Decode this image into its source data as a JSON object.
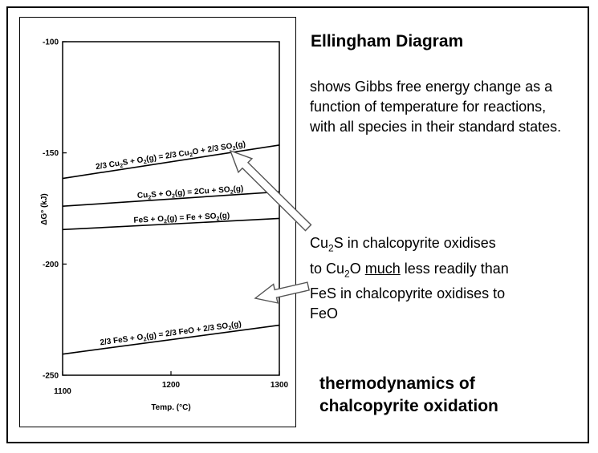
{
  "slide": {
    "title": "Ellingham Diagram",
    "description": "shows Gibbs free energy change as a function of temperature for reactions, with all species in their standard states.",
    "note": {
      "l1_a": "Cu",
      "l1_sub": "2",
      "l1_b": "S in chalcopyrite oxidises",
      "l2_a": "to Cu",
      "l2_sub": "2",
      "l2_b": "O ",
      "l2_u": "much",
      "l2_c": " less readily than",
      "l3": "FeS in chalcopyrite oxidises to",
      "l4": "FeO"
    },
    "footer_line1": "thermodynamics of",
    "footer_line2": "chalcopyrite oxidation"
  },
  "chart_data": {
    "type": "line",
    "xlabel": "Temp. (°C)",
    "ylabel": "ΔG° (kJ)",
    "xlim": [
      1100,
      1300
    ],
    "ylim": [
      -250,
      -100
    ],
    "x_ticks": [
      "1100",
      "1200",
      "1300"
    ],
    "y_ticks": [
      "-100",
      "-150",
      "-200",
      "-250"
    ],
    "grid": false,
    "series": [
      {
        "x": [
          1100,
          1300
        ],
        "y": [
          -161.5,
          -146.5
        ],
        "label_parts": [
          "2/3 Cu",
          "2",
          "S + O",
          "2",
          "(g) = 2/3 Cu",
          "2",
          "O + 2/3 SO",
          "2",
          "(g)"
        ],
        "label_x": 1200,
        "label_offset": 5
      },
      {
        "x": [
          1100,
          1300
        ],
        "y": [
          -174,
          -167.5
        ],
        "label_parts": [
          "Cu",
          "2",
          "S + O",
          "2",
          "(g) = 2Cu + SO",
          "2",
          "(g)"
        ],
        "label_x": 1218,
        "label_offset": 4
      },
      {
        "x": [
          1100,
          1300
        ],
        "y": [
          -184.5,
          -179.5
        ],
        "label_parts": [
          "FeS + O",
          "2",
          "(g) = Fe + SO",
          "2",
          "(g)"
        ],
        "label_x": 1210,
        "label_offset": 4
      },
      {
        "x": [
          1100,
          1300
        ],
        "y": [
          -240.5,
          -227.5
        ],
        "label_parts": [
          "2/3 FeS + O",
          "2",
          "(g) = 2/3 FeO + 2/3 SO",
          "2",
          "(g)"
        ],
        "label_x": 1200,
        "label_offset": 5
      }
    ]
  }
}
